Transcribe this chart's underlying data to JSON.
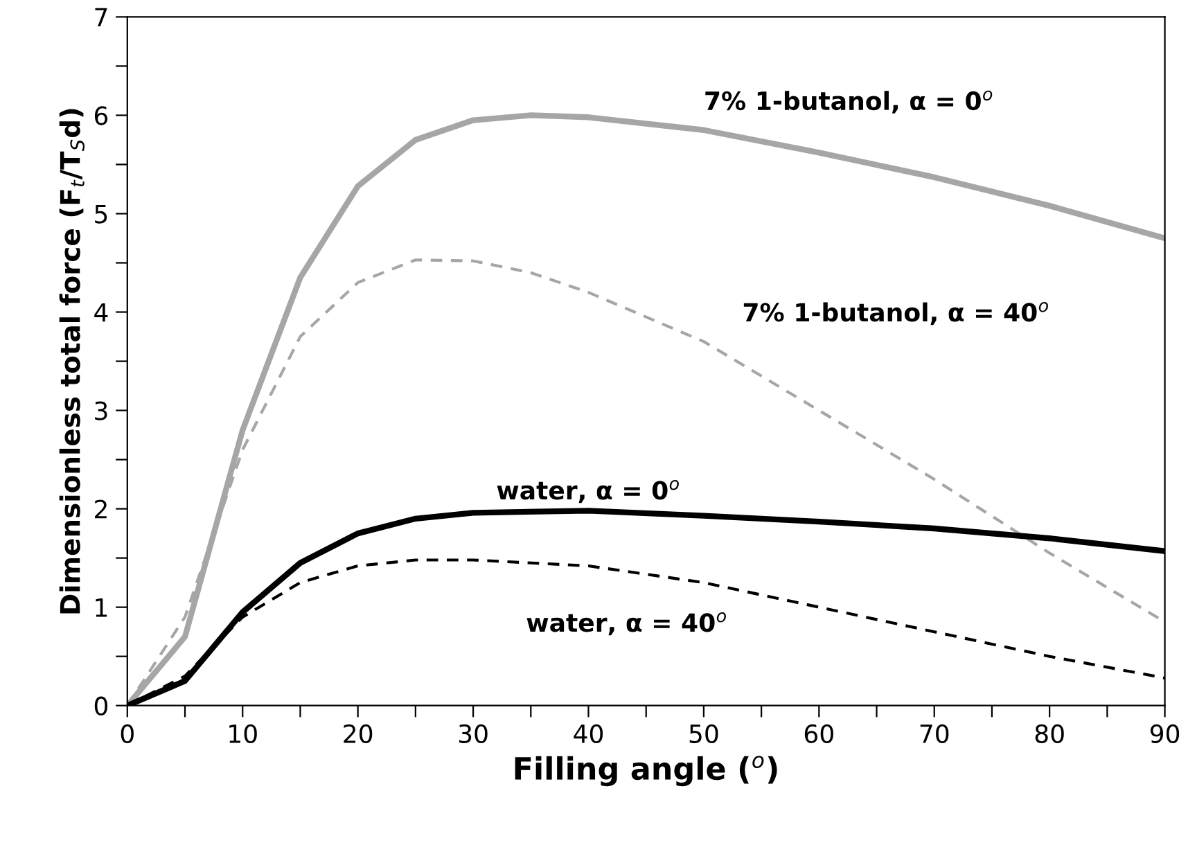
{
  "chart_data": {
    "type": "line",
    "xlabel": "Filling angle ($^{o}$)",
    "ylabel": "Dimensionless total force (F$_{t}$/T$_{S}$d)",
    "xlim": [
      0,
      90
    ],
    "ylim": [
      0,
      7
    ],
    "xticks": [
      0,
      {
        "value": 5,
        "label": null
      },
      10,
      {
        "value": 15,
        "label": null
      },
      20,
      {
        "value": 25,
        "label": null
      },
      30,
      {
        "value": 35,
        "label": null
      },
      40,
      {
        "value": 45,
        "label": null
      },
      50,
      {
        "value": 55,
        "label": null
      },
      60,
      {
        "value": 65,
        "label": null
      },
      70,
      {
        "value": 75,
        "label": null
      },
      80,
      {
        "value": 85,
        "label": null
      },
      90
    ],
    "yticks": [
      0,
      {
        "value": 0.5,
        "label": null
      },
      1,
      {
        "value": 1.5,
        "label": null
      },
      2,
      {
        "value": 2.5,
        "label": null
      },
      3,
      {
        "value": 3.5,
        "label": null
      },
      4,
      {
        "value": 4.5,
        "label": null
      },
      5,
      {
        "value": 5.5,
        "label": null
      },
      6,
      {
        "value": 6.5,
        "label": null
      },
      7
    ],
    "grid": false,
    "legend": false,
    "marker": "none",
    "series": [
      {
        "name": "7% 1-butanol, α = 0$^{o}$",
        "color": "#a6a6a6",
        "line_style": "solid",
        "x": [
          0,
          5,
          10,
          15,
          20,
          25,
          30,
          35,
          40,
          50,
          60,
          70,
          80,
          90
        ],
        "values": [
          0,
          0.7,
          2.8,
          4.35,
          5.28,
          5.75,
          5.95,
          6.0,
          5.98,
          5.85,
          5.62,
          5.37,
          5.08,
          4.75
        ]
      },
      {
        "name": "7% 1-butanol, α = 40$^{o}$",
        "color": "#a6a6a6",
        "line_style": "dashed",
        "x": [
          0,
          5,
          10,
          15,
          20,
          25,
          30,
          35,
          40,
          50,
          60,
          70,
          80,
          90
        ],
        "values": [
          0,
          0.9,
          2.6,
          3.75,
          4.3,
          4.53,
          4.52,
          4.4,
          4.2,
          3.7,
          3.0,
          2.3,
          1.55,
          0.85
        ]
      },
      {
        "name": "water, α = 0$^{o}$",
        "color": "#000000",
        "line_style": "solid",
        "x": [
          0,
          5,
          10,
          15,
          20,
          25,
          30,
          40,
          50,
          60,
          70,
          80,
          90
        ],
        "values": [
          0,
          0.25,
          0.95,
          1.45,
          1.75,
          1.9,
          1.96,
          1.98,
          1.93,
          1.87,
          1.8,
          1.7,
          1.57
        ]
      },
      {
        "name": "water, α = 40$^{o}$",
        "color": "#000000",
        "line_style": "dashed",
        "x": [
          0,
          5,
          10,
          15,
          20,
          25,
          30,
          40,
          50,
          60,
          70,
          80,
          90
        ],
        "values": [
          0,
          0.3,
          0.9,
          1.25,
          1.42,
          1.48,
          1.48,
          1.42,
          1.25,
          1.0,
          0.75,
          0.5,
          0.28
        ]
      }
    ]
  }
}
